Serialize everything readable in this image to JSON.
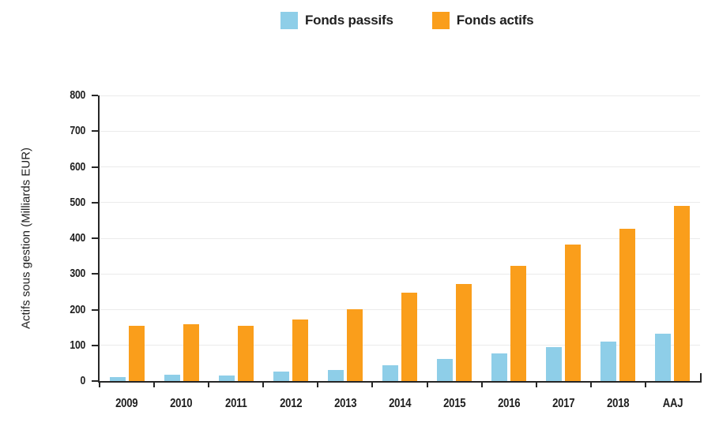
{
  "legend": {
    "items": [
      {
        "label": "Fonds passifs",
        "color": "#8ECEE8",
        "icon": "blue-square-swatch"
      },
      {
        "label": "Fonds actifs",
        "color": "#FA9E1B",
        "icon": "orange-square-swatch"
      }
    ]
  },
  "chart_data": {
    "type": "bar",
    "title": "",
    "xlabel": "",
    "ylabel": "Actifs sous gestion (Milliards EUR)",
    "ylim": [
      0,
      800
    ],
    "ytick_step": 100,
    "yticks": [
      0,
      100,
      200,
      300,
      400,
      500,
      600,
      700,
      800
    ],
    "grid": true,
    "legend_position": "top-center",
    "categories": [
      "2009",
      "2010",
      "2011",
      "2012",
      "2013",
      "2014",
      "2015",
      "2016",
      "2017",
      "2018",
      "AAJ"
    ],
    "series": [
      {
        "name": "Fonds passifs",
        "color": "#8ECEE8",
        "values": [
          12,
          18,
          16,
          27,
          31,
          45,
          62,
          78,
          95,
          110,
          133
        ]
      },
      {
        "name": "Fonds actifs",
        "color": "#FA9E1B",
        "values": [
          155,
          160,
          154,
          172,
          201,
          247,
          271,
          322,
          383,
          427,
          490
        ]
      }
    ],
    "colors": {
      "axis": "#262626",
      "grid": "#ebebeb",
      "text": "#1f1f1f"
    }
  }
}
